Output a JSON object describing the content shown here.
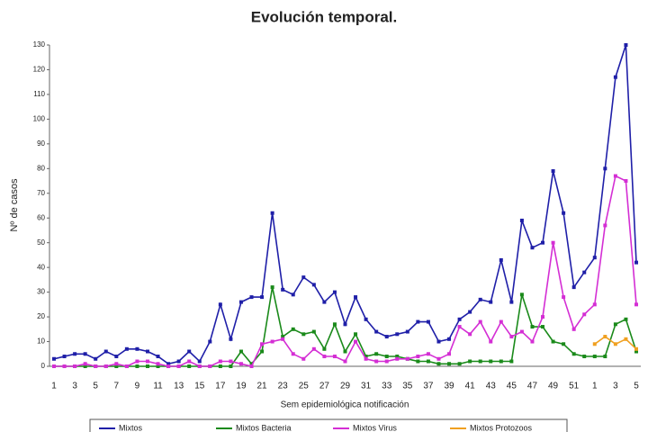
{
  "chart_data": {
    "type": "line",
    "title": "Evolución temporal.",
    "y_label": "Nº de casos",
    "x_label": "Sem epidemiológica notificación",
    "categories": [
      "1",
      null,
      "3",
      null,
      "5",
      null,
      "7",
      null,
      "9",
      null,
      "11",
      null,
      "13",
      null,
      "15",
      null,
      "17",
      null,
      "19",
      null,
      "21",
      null,
      "23",
      null,
      "25",
      null,
      "27",
      null,
      "29",
      null,
      "31",
      null,
      "33",
      null,
      "35",
      null,
      "37",
      null,
      "39",
      null,
      "41",
      null,
      "43",
      null,
      "45",
      null,
      "47",
      null,
      "49",
      null,
      "51",
      null,
      "1",
      null,
      "3",
      null,
      "5"
    ],
    "ylim": [
      0,
      130
    ],
    "yticks": [
      0,
      10,
      20,
      30,
      40,
      50,
      60,
      70,
      80,
      90,
      100,
      110,
      120,
      130
    ],
    "grid": false,
    "series": [
      {
        "name": "Mixtos",
        "color": "#1f1fa8",
        "values": [
          3,
          4,
          5,
          5,
          3,
          6,
          4,
          7,
          7,
          6,
          4,
          1,
          2,
          6,
          2,
          10,
          25,
          11,
          26,
          28,
          28,
          62,
          31,
          29,
          36,
          33,
          26,
          30,
          17,
          28,
          19,
          14,
          12,
          13,
          14,
          18,
          18,
          10,
          11,
          19,
          22,
          27,
          26,
          43,
          26,
          59,
          48,
          50,
          79,
          62,
          32,
          38,
          44,
          80,
          117,
          130,
          42
        ]
      },
      {
        "name": "Mixtos Bacteria",
        "color": "#1a8a1a",
        "values": [
          0,
          0,
          0,
          0,
          0,
          0,
          0,
          0,
          0,
          0,
          0,
          0,
          0,
          0,
          0,
          0,
          0,
          0,
          6,
          1,
          6,
          32,
          12,
          15,
          13,
          14,
          7,
          17,
          6,
          13,
          4,
          5,
          4,
          4,
          3,
          2,
          2,
          1,
          1,
          1,
          2,
          2,
          2,
          2,
          2,
          29,
          16,
          16,
          10,
          9,
          5,
          4,
          4,
          4,
          17,
          19,
          6
        ]
      },
      {
        "name": "Mixtos Virus",
        "color": "#d42ed4",
        "values": [
          0,
          0,
          0,
          1,
          0,
          0,
          1,
          0,
          2,
          2,
          1,
          0,
          0,
          2,
          0,
          0,
          2,
          2,
          1,
          0,
          9,
          10,
          11,
          5,
          3,
          7,
          4,
          4,
          2,
          10,
          3,
          2,
          2,
          3,
          3,
          4,
          5,
          3,
          5,
          16,
          13,
          18,
          10,
          18,
          12,
          14,
          10,
          20,
          50,
          28,
          15,
          21,
          25,
          57,
          77,
          75,
          25
        ]
      },
      {
        "name": "Mixtos Protozoos",
        "color": "#f0a020",
        "values": [
          null,
          null,
          null,
          null,
          null,
          null,
          null,
          null,
          null,
          null,
          null,
          null,
          null,
          null,
          null,
          null,
          null,
          null,
          null,
          null,
          null,
          null,
          null,
          null,
          null,
          null,
          null,
          null,
          null,
          null,
          null,
          null,
          null,
          null,
          null,
          null,
          null,
          null,
          null,
          null,
          null,
          null,
          null,
          null,
          null,
          null,
          null,
          null,
          null,
          null,
          null,
          null,
          9,
          12,
          9,
          11,
          7
        ]
      }
    ]
  }
}
